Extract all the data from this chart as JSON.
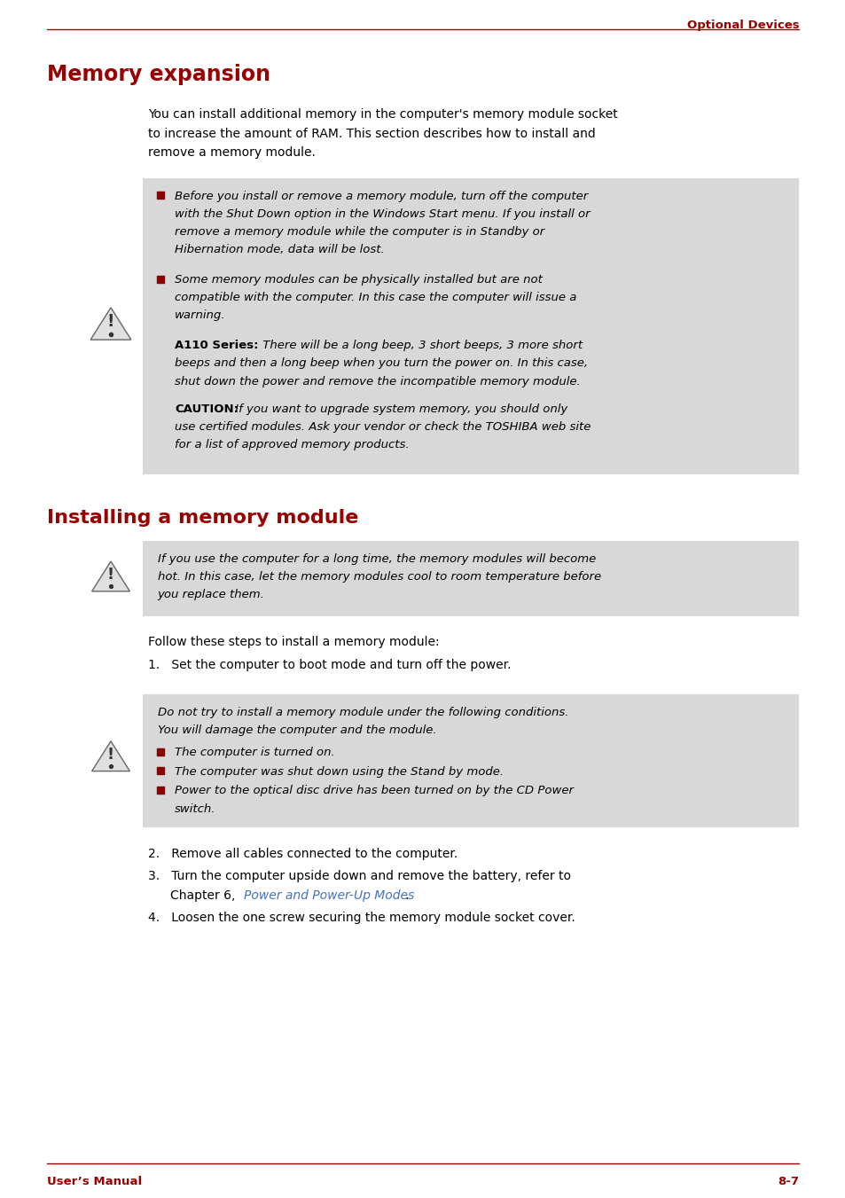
{
  "page_title_right": "Optional Devices",
  "footer_left": "User’s Manual",
  "footer_right": "8-7",
  "header_color": "#990000",
  "bg_color": "#ffffff",
  "section1_title": "Memory expansion",
  "section2_title": "Installing a memory module",
  "title_color": "#990000",
  "body_color": "#000000",
  "link_color": "#4472c4",
  "bullet_color": "#8b0000",
  "warning_bg": "#d8d8d8",
  "body_fontsize": 10.0,
  "title_fontsize": 17,
  "section2_fontsize": 16,
  "header_fontsize": 9.5,
  "footer_fontsize": 9.5,
  "para1_lines": [
    "You can install additional memory in the computer's memory module socket",
    "to increase the amount of RAM. This section describes how to install and",
    "remove a memory module."
  ],
  "warn1_lines": [
    "Before you install or remove a memory module, turn off the computer",
    "with the Shut Down option in the Windows Start menu. If you install or",
    "remove a memory module while the computer is in Standby or",
    "Hibernation mode, data will be lost."
  ],
  "warn2_lines": [
    "Some memory modules can be physically installed but are not",
    "compatible with the computer. In this case the computer will issue a",
    "warning."
  ],
  "warn3_bold": "A110 Series:",
  "warn3_italic": " There will be a long beep, 3 short beeps, 3 more short",
  "warn3_lines2": [
    "beeps and then a long beep when you turn the power on. In this case,",
    "shut down the power and remove the incompatible memory module."
  ],
  "warn4_bold": "CAUTION:",
  "warn4_italic": " If you want to upgrade system memory, you should only",
  "warn4_lines2": [
    "use certified modules. Ask your vendor or check the TOSHIBA web site",
    "for a list of approved memory products."
  ],
  "warn5_lines": [
    "If you use the computer for a long time, the memory modules will become",
    "hot. In this case, let the memory modules cool to room temperature before",
    "you replace them."
  ],
  "step_intro": "Follow these steps to install a memory module:",
  "step1": "Set the computer to boot mode and turn off the power.",
  "warn6_line1": "Do not try to install a memory module under the following conditions.",
  "warn6_line2": "You will damage the computer and the module.",
  "bullet1": "The computer is turned on.",
  "bullet2": "The computer was shut down using the Stand by mode.",
  "bullet3a": "Power to the optical disc drive has been turned on by the CD Power",
  "bullet3b": "switch.",
  "step2": "Remove all cables connected to the computer.",
  "step3_line1": "Turn the computer upside down and remove the battery, refer to",
  "step3_line2_pre": "Chapter 6, ",
  "step3_link": "Power and Power-Up Modes",
  "step3_end": ".",
  "step4": "Loosen the one screw securing the memory module socket cover."
}
